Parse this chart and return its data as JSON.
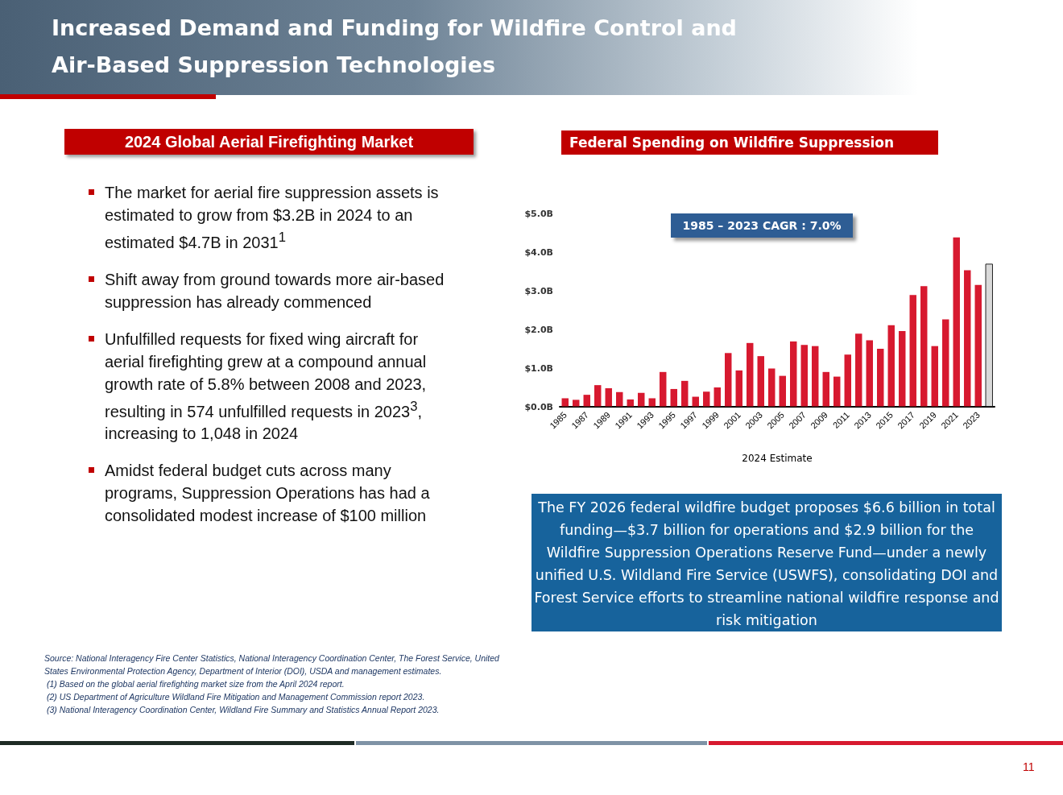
{
  "chart_data": {
    "type": "bar",
    "title": "Increased Demand and Funding for Wildfire Control and Air-Based Suppression Technologies",
    "subtitle": "Federal Spending on Wildfire Suppression",
    "xlabel": "2024 Estimate",
    "categories": [
      "1985",
      null,
      "1987",
      null,
      "1989",
      null,
      "1991",
      null,
      "1993",
      null,
      "1995",
      null,
      "1997",
      null,
      "1999",
      null,
      "2001",
      null,
      "2003",
      null,
      "2005",
      null,
      "2007",
      null,
      "2009",
      null,
      "2011",
      null,
      "2013",
      null,
      "2015",
      null,
      "2017",
      null,
      "2019",
      null,
      "2021",
      null,
      "2023",
      null
    ],
    "values": [
      0.23,
      0.19,
      0.32,
      0.57,
      0.49,
      0.39,
      0.2,
      0.37,
      0.23,
      0.91,
      0.47,
      0.68,
      0.27,
      0.4,
      0.51,
      1.4,
      0.95,
      1.66,
      1.32,
      1.0,
      0.81,
      1.7,
      1.61,
      1.58,
      0.91,
      0.79,
      1.36,
      1.9,
      1.73,
      1.51,
      2.12,
      1.97,
      2.9,
      3.13,
      1.58,
      2.27,
      4.39,
      3.54,
      3.16,
      3.7
    ],
    "colors": [
      "#d7192f",
      "#d7192f",
      "#d7192f",
      "#d7192f",
      "#d7192f",
      "#d7192f",
      "#d7192f",
      "#d7192f",
      "#d7192f",
      "#d7192f",
      "#d7192f",
      "#d7192f",
      "#d7192f",
      "#d7192f",
      "#d7192f",
      "#d7192f",
      "#d7192f",
      "#d7192f",
      "#d7192f",
      "#d7192f",
      "#d7192f",
      "#d7192f",
      "#d7192f",
      "#d7192f",
      "#d7192f",
      "#d7192f",
      "#d7192f",
      "#d7192f",
      "#d7192f",
      "#d7192f",
      "#d7192f",
      "#d7192f",
      "#d7192f",
      "#d7192f",
      "#d7192f",
      "#d7192f",
      "#d7192f",
      "#d7192f",
      "#d7192f",
      "#d9d9d9"
    ],
    "ylim": [
      0,
      5
    ],
    "yticks": [
      {
        "value": 0,
        "label": "$0.0B"
      },
      {
        "value": 1,
        "label": "$1.0B"
      },
      {
        "value": 2,
        "label": "$2.0B"
      },
      {
        "value": 3,
        "label": "$3.0B"
      },
      {
        "value": 4,
        "label": "$4.0B"
      },
      {
        "value": 5,
        "label": "$5.0B"
      }
    ],
    "grid": false,
    "annotations": [
      "1985 – 2023 CAGR : 7.0%",
      "2024 Global Aerial Firefighting Market",
      "The market for aerial fire suppression assets is estimated to grow from $3.2B in 2024 to an estimated $4.7B in 2031$^{1}$",
      "Shift away from ground towards more air-based suppression has already commenced",
      "Unfulfilled requests for fixed wing aircraft for aerial firefighting grew at a compound annual growth rate of 5.8% between 2008 and 2023, resulting in 574 unfulfilled requests in 2023$^{3}$, increasing to 1,048 in 2024",
      "Amidst federal budget cuts across many programs, Suppression Operations has had a consolidated modest increase of $100 million",
      "The FY 2026 federal wildfire budget proposes $6.6 billion in total funding—$3.7 billion for operations and $2.9 billion for the Wildfire Suppression Operations Reserve Fund—under a newly unified U.S. Wildland Fire Service (USWFS), consolidating DOI and Forest Service efforts to streamline national wildfire response and risk mitigation",
      "Source: National Interagency Fire Center Statistics, National Interagency Coordination Center, The Forest Service, United States Environmental Protection Agency, Department of Interior (DOI), USDA and management estimates.",
      "(1) Based on the global aerial firefighting market size from the April 2024 report.",
      "(2) US Department of Agriculture Wildland Fire Mitigation and Management Commission report 2023.",
      "(3) National Interagency Coordination Center, Wildland Fire Summary and Statistics Annual Report 2023.",
      "11"
    ]
  }
}
